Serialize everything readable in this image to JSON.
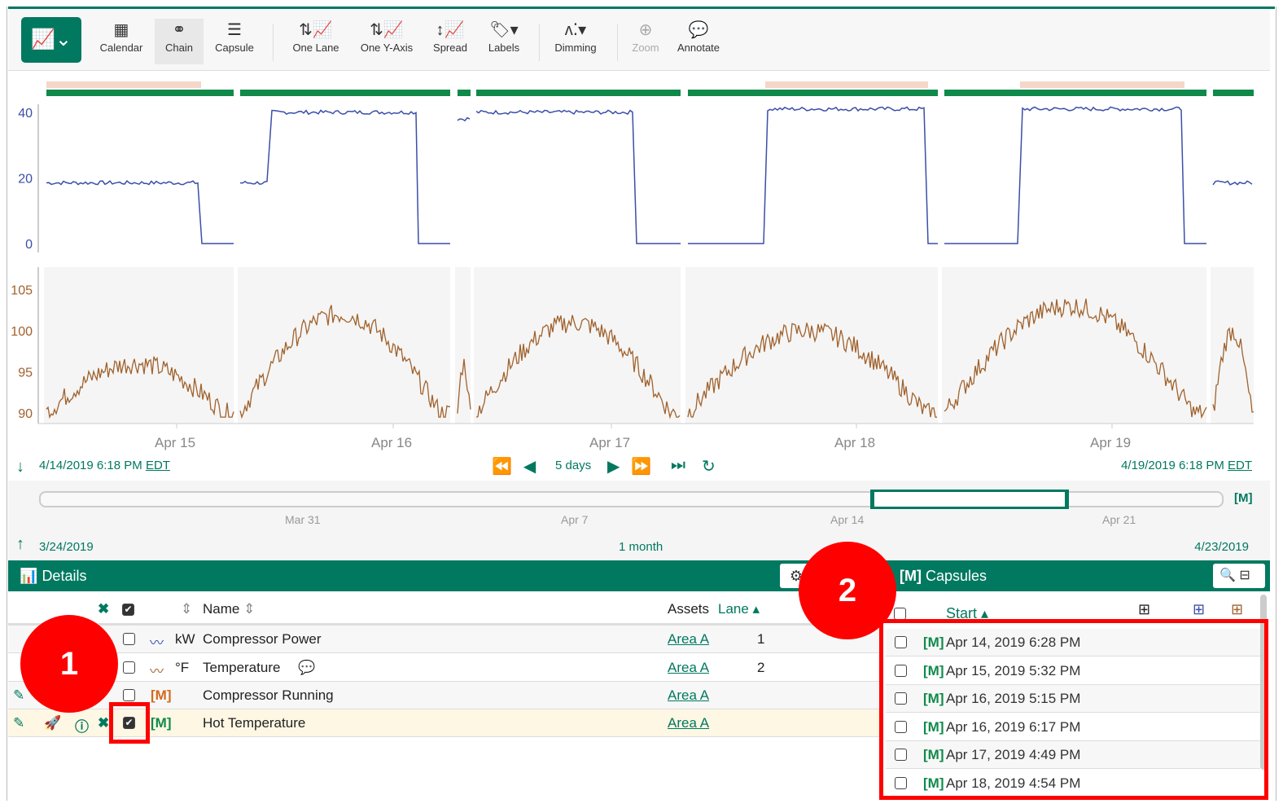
{
  "toolbar": {
    "items": [
      {
        "label": "Calendar",
        "icon": "calendar-icon"
      },
      {
        "label": "Chain",
        "icon": "chain-icon"
      },
      {
        "label": "Capsule",
        "icon": "capsule-icon"
      },
      {
        "label": "One Lane",
        "icon": "one-lane-icon"
      },
      {
        "label": "One Y-Axis",
        "icon": "one-y-axis-icon"
      },
      {
        "label": "Spread",
        "icon": "spread-icon"
      },
      {
        "label": "Labels",
        "icon": "tag-icon"
      },
      {
        "label": "Dimming",
        "icon": "dimming-icon"
      },
      {
        "label": "Zoom",
        "icon": "zoom-icon"
      },
      {
        "label": "Annotate",
        "icon": "comment-icon"
      }
    ],
    "active": "Chain"
  },
  "chart": {
    "power_ticks": [
      "40",
      "20",
      "0"
    ],
    "temp_ticks": [
      "105",
      "100",
      "95",
      "90"
    ],
    "date_labels": [
      "Apr 15",
      "Apr 16",
      "Apr 17",
      "Apr 18",
      "Apr 19"
    ],
    "colors": {
      "power": "#3a4fa8",
      "temperature": "#a0622d",
      "capsule": "#0f8a4a",
      "capsule_alt": "#f5d6c8"
    }
  },
  "nav": {
    "start": "4/14/2019 6:18 PM",
    "end": "4/19/2019 6:18 PM",
    "tz": "EDT",
    "duration": "5 days"
  },
  "overview": {
    "ticks": [
      "Mar 31",
      "Apr 7",
      "Apr 14",
      "Apr 21"
    ],
    "start": "3/24/2019",
    "end": "4/23/2019",
    "duration": "1 month"
  },
  "details": {
    "title": "Details",
    "headers": {
      "name": "Name",
      "assets": "Assets",
      "lane": "Lane"
    },
    "rows": [
      {
        "unit": "kW",
        "name": "Compressor Power",
        "asset": "Area A",
        "lane": "1",
        "checked": false
      },
      {
        "unit": "°F",
        "name": "Temperature",
        "asset": "Area A",
        "lane": "2",
        "checked": false
      },
      {
        "unit": "",
        "name": "Compressor Running",
        "asset": "Area A",
        "lane": "",
        "checked": false
      },
      {
        "unit": "",
        "name": "Hot Temperature",
        "asset": "Area A",
        "lane": "",
        "checked": true
      }
    ]
  },
  "capsules": {
    "title": "Capsules",
    "header": "Start",
    "rows": [
      "Apr 14, 2019 6:28 PM",
      "Apr 15, 2019 5:32 PM",
      "Apr 16, 2019 5:15 PM",
      "Apr 16, 2019 6:17 PM",
      "Apr 17, 2019 4:49 PM",
      "Apr 18, 2019 4:54 PM"
    ]
  },
  "callouts": [
    "1",
    "2"
  ]
}
